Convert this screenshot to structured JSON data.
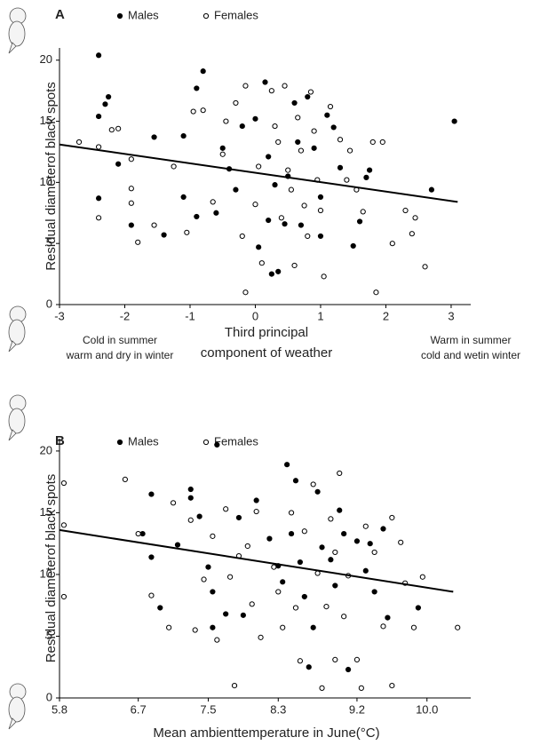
{
  "chart_data": [
    {
      "type": "scatter",
      "panel_label": "A",
      "ylabel": "Residual diameterof black spots",
      "xlabel": [
        "Third principal",
        "component of weather"
      ],
      "left_note": [
        "Cold in summer",
        "warm and dry in winter"
      ],
      "right_note": [
        "Warm in summer",
        "cold and wetin  winter"
      ],
      "xlim": [
        -3,
        3.3
      ],
      "ylim": [
        0,
        21
      ],
      "xticks": [
        -3,
        -2,
        -1,
        0,
        1,
        2,
        3
      ],
      "yticks": [
        0,
        5,
        10,
        15,
        20
      ],
      "series": [
        {
          "name": "Males",
          "color": "#000000",
          "marker": "filled",
          "x": [
            -2.4,
            -2.4,
            -2.25,
            -2.3,
            -2.4,
            -2.1,
            -1.9,
            -1.55,
            -1.4,
            -1.1,
            -1.1,
            -0.9,
            -0.8,
            -0.9,
            -0.6,
            -0.5,
            -0.4,
            -0.2,
            0,
            0.05,
            0.15,
            0.2,
            0.25,
            0.35,
            0.3,
            0.45,
            0.6,
            0.7,
            0.8,
            0.9,
            1.0,
            1.1,
            1.2,
            1.3,
            1.5,
            1.6,
            1.7,
            1.75,
            2.7,
            3.05,
            0.5,
            -0.3,
            1.0,
            0.2,
            0.65
          ],
          "y": [
            20.4,
            15.4,
            17,
            16.4,
            8.7,
            11.5,
            6.5,
            13.7,
            5.7,
            13.8,
            8.8,
            17.7,
            19.1,
            7.2,
            7.5,
            12.8,
            11.1,
            14.6,
            15.2,
            4.7,
            18.2,
            12.1,
            2.5,
            2.7,
            9.8,
            6.6,
            16.5,
            6.5,
            17,
            12.8,
            8.8,
            15.5,
            14.5,
            11.2,
            4.8,
            6.8,
            10.4,
            11,
            9.4,
            15,
            10.5,
            9.4,
            5.6,
            6.9,
            13.3
          ]
        },
        {
          "name": "Females",
          "color": "#000000",
          "marker": "open",
          "x": [
            -2.7,
            -2.4,
            -2.4,
            -2.2,
            -2.1,
            -1.9,
            -1.9,
            -1.9,
            -1.8,
            -1.55,
            -1.25,
            -1.05,
            -0.95,
            -0.8,
            -0.65,
            -0.5,
            -0.45,
            -0.3,
            -0.15,
            -0.2,
            -0.15,
            0.0,
            0.05,
            0.1,
            0.25,
            0.3,
            0.35,
            0.4,
            0.45,
            0.5,
            0.55,
            0.6,
            0.65,
            0.7,
            0.75,
            0.8,
            0.85,
            0.9,
            0.95,
            1.0,
            1.05,
            1.15,
            1.3,
            1.45,
            1.55,
            1.65,
            1.8,
            1.85,
            1.95,
            2.1,
            2.3,
            2.4,
            2.45,
            2.6,
            1.4
          ],
          "y": [
            13.3,
            12.9,
            7.1,
            14.3,
            14.4,
            11.9,
            9.5,
            8.3,
            5.1,
            6.5,
            11.3,
            5.9,
            15.8,
            15.9,
            8.4,
            12.3,
            15,
            16.5,
            17.9,
            5.6,
            1.0,
            8.2,
            11.3,
            3.4,
            17.5,
            14.6,
            13.3,
            7.1,
            17.9,
            11,
            9.4,
            3.2,
            15.3,
            12.6,
            8.1,
            5.6,
            17.4,
            14.2,
            10.2,
            7.7,
            2.3,
            16.2,
            13.5,
            12.6,
            9.4,
            7.6,
            13.3,
            1.0,
            13.3,
            5,
            7.7,
            5.8,
            7.1,
            3.1,
            10.2
          ]
        }
      ],
      "fit": {
        "x": [
          -3,
          3.1
        ],
        "y": [
          13.1,
          8.4
        ]
      }
    },
    {
      "type": "scatter",
      "panel_label": "B",
      "ylabel": "Residual diameterof black spots",
      "xlabel": [
        "Mean ambienttemperature in June(°C)"
      ],
      "xlim": [
        5.8,
        10.5
      ],
      "ylim": [
        0,
        21
      ],
      "xticks": [
        5.8,
        6.7,
        7.5,
        8.3,
        9.2,
        {
          "value": 10,
          "label": "10.0"
        }
      ],
      "yticks": [
        0,
        5,
        10,
        15,
        20
      ],
      "series": [
        {
          "name": "Males",
          "color": "#000000",
          "marker": "filled",
          "x": [
            6.85,
            6.85,
            6.95,
            7.3,
            7.3,
            7.15,
            7.4,
            7.5,
            7.55,
            7.6,
            7.55,
            7.7,
            7.85,
            8.05,
            8.2,
            8.3,
            8.4,
            8.5,
            8.45,
            8.55,
            8.6,
            8.65,
            8.7,
            8.75,
            8.8,
            8.9,
            8.95,
            9.0,
            9.05,
            9.1,
            9.2,
            9.3,
            9.35,
            9.4,
            9.5,
            9.55,
            9.9,
            6.75,
            7.9,
            8.35
          ],
          "y": [
            16.5,
            11.4,
            7.3,
            16.9,
            16.2,
            12.4,
            14.7,
            10.6,
            5.7,
            20.5,
            8.6,
            6.8,
            14.6,
            16,
            12.9,
            10.7,
            18.9,
            17.6,
            13.3,
            11,
            8.2,
            2.5,
            5.7,
            16.7,
            12.2,
            11.2,
            9.1,
            15.2,
            13.3,
            2.3,
            12.7,
            10.3,
            12.5,
            8.6,
            13.7,
            6.5,
            7.3,
            13.3,
            6.7,
            9.4
          ]
        },
        {
          "name": "Females",
          "color": "#000000",
          "marker": "open",
          "x": [
            5.85,
            5.85,
            5.85,
            6.55,
            6.7,
            6.85,
            7.05,
            7.1,
            7.3,
            7.35,
            7.45,
            7.55,
            7.6,
            7.7,
            7.75,
            7.8,
            7.85,
            8.0,
            8.05,
            8.1,
            8.25,
            8.35,
            8.45,
            8.5,
            8.55,
            8.6,
            8.7,
            8.75,
            8.8,
            8.85,
            8.9,
            8.95,
            9.0,
            9.05,
            9.1,
            9.2,
            9.25,
            9.3,
            9.4,
            9.5,
            9.6,
            9.6,
            9.75,
            9.85,
            9.95,
            10.35,
            8.3,
            8.95,
            7.95,
            9.7
          ],
          "y": [
            17.4,
            14,
            8.2,
            17.7,
            13.3,
            8.3,
            5.7,
            15.8,
            14.4,
            5.5,
            9.6,
            13.1,
            4.7,
            15.3,
            9.8,
            1.0,
            11.5,
            7.6,
            15.1,
            4.9,
            10.6,
            5.7,
            15,
            7.3,
            3,
            13.5,
            17.3,
            10.1,
            0.8,
            7.4,
            14.5,
            3.1,
            18.2,
            6.6,
            9.9,
            3.1,
            0.8,
            13.9,
            11.8,
            5.8,
            1.0,
            14.6,
            9.3,
            5.7,
            9.8,
            5.7,
            8.6,
            11.8,
            12.3,
            12.6
          ]
        }
      ],
      "fit": {
        "x": [
          5.8,
          10.3
        ],
        "y": [
          13.6,
          8.6
        ]
      }
    }
  ]
}
